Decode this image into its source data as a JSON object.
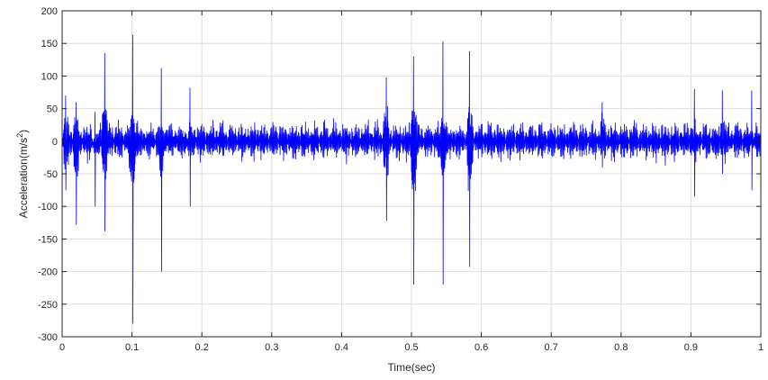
{
  "chart_data": {
    "type": "line",
    "title": "",
    "xlabel": "Time(sec)",
    "ylabel_base": "Acceleration(m/s",
    "ylabel_sup": "2",
    "ylabel_end": ")",
    "xlim": [
      0,
      1
    ],
    "ylim": [
      -300,
      200
    ],
    "x_ticks": [
      0,
      0.1,
      0.2,
      0.3,
      0.4,
      0.5,
      0.6,
      0.7,
      0.8,
      0.9,
      1
    ],
    "x_tick_labels": [
      "0",
      "0.1",
      "0.2",
      "0.3",
      "0.4",
      "0.5",
      "0.6",
      "0.7",
      "0.8",
      "0.9",
      "1"
    ],
    "y_ticks": [
      200,
      150,
      100,
      50,
      0,
      -50,
      -100,
      -150,
      -200,
      -250,
      -300
    ],
    "y_tick_labels": [
      "200",
      "150",
      "100",
      "50",
      "0",
      "-50",
      "-100",
      "-150",
      "-200",
      "-250",
      "-300"
    ],
    "grid": true,
    "series": [
      {
        "color": "#0000ff",
        "baseline_amplitude": 35,
        "impulses": [
          {
            "x": 0.005,
            "max": 70,
            "min": -75
          },
          {
            "x": 0.02,
            "max": 60,
            "min": -128
          },
          {
            "x": 0.047,
            "max": 45,
            "min": -100
          },
          {
            "x": 0.061,
            "max": 135,
            "min": -138
          },
          {
            "x": 0.101,
            "max": 163,
            "min": -280
          },
          {
            "x": 0.142,
            "max": 112,
            "min": -200
          },
          {
            "x": 0.183,
            "max": 82,
            "min": -100
          },
          {
            "x": 0.464,
            "max": 98,
            "min": -122
          },
          {
            "x": 0.503,
            "max": 130,
            "min": -220
          },
          {
            "x": 0.545,
            "max": 153,
            "min": -220
          },
          {
            "x": 0.583,
            "max": 138,
            "min": -193
          },
          {
            "x": 0.773,
            "max": 60,
            "min": -40
          },
          {
            "x": 0.905,
            "max": 80,
            "min": -85
          },
          {
            "x": 0.945,
            "max": 78,
            "min": -50
          },
          {
            "x": 0.987,
            "max": 78,
            "min": -75
          }
        ]
      }
    ]
  }
}
